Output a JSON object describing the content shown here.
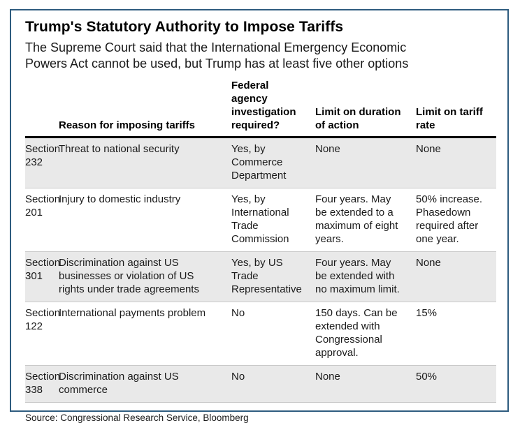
{
  "chart_data": {
    "type": "table",
    "title": "Trump's Statutory Authority to Impose Tariffs",
    "subtitle": "The Supreme Court said that the International Emergency Economic Powers Act cannot be used, but Trump has at least five other options",
    "columns": [
      "",
      "Reason for imposing tariffs",
      "Federal agency investigation required?",
      "Limit on duration of action",
      "Limit on tariff rate"
    ],
    "rows": [
      [
        "Section 232",
        "Threat to national security",
        "Yes, by Commerce Department",
        "None",
        "None"
      ],
      [
        "Section 201",
        "Injury to domestic industry",
        "Yes, by International Trade Commission",
        "Four years. May be extended to a maximum of eight years.",
        "50% increase. Phasedown required after one year."
      ],
      [
        "Section 301",
        "Discrimination against US businesses or violation of US rights under trade agreements",
        "Yes, by US Trade Representative",
        "Four years. May be extended with no maximum limit.",
        "None"
      ],
      [
        "Section 122",
        "International payments problem",
        "No",
        "150 days. Can be extended with Congressional approval.",
        "15%"
      ],
      [
        "Section 338",
        "Discrimination against US commerce",
        "No",
        "None",
        "50%"
      ]
    ],
    "source": "Source: Congressional Research Service, Bloomberg",
    "layout_hints": {
      "alternating_row_shading": "rows 1, 3, 5 shaded gray",
      "header_rule": "thick black line below column headers"
    },
    "colors": {
      "frame_border": "#2e5c7f",
      "row_shading": "#e9e9e9",
      "row_separator": "#c9c9c9",
      "header_rule": "#000000",
      "text": "#1a1a1a"
    }
  }
}
